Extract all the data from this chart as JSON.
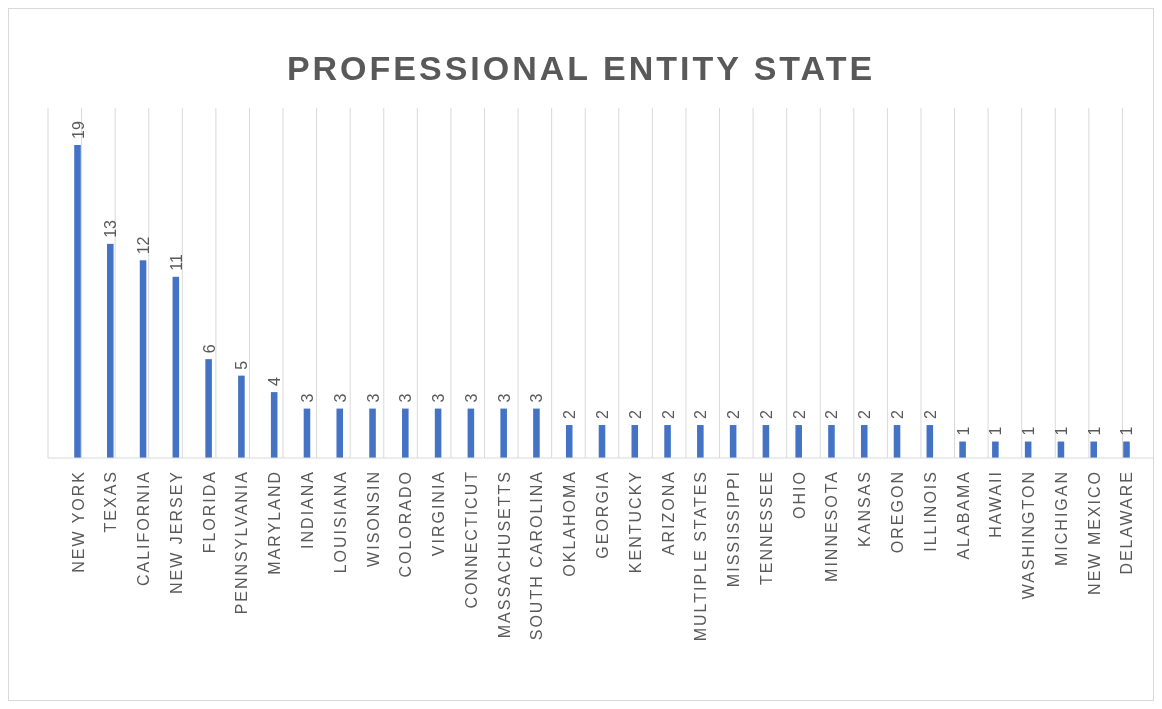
{
  "chart_data": {
    "type": "bar",
    "title": "PROFESSIONAL ENTITY STATE",
    "categories": [
      "NEW YORK",
      "TEXAS",
      "CALIFORNIA",
      "NEW JERSEY",
      "FLORIDA",
      "PENNSYLVANIA",
      "MARYLAND",
      "INDIANA",
      "LOUISIANA",
      "WISONSIN",
      "COLORADO",
      "VIRGINIA",
      "CONNECTICUT",
      "MASSACHUSETTS",
      "SOUTH CAROLINA",
      "OKLAHOMA",
      "GEORGIA",
      "KENTUCKY",
      "ARIZONA",
      "MULTIPLE STATES",
      "MISSISSIPPI",
      "TENNESSEE",
      "OHIO",
      "MINNESOTA",
      "KANSAS",
      "OREGON",
      "ILLINOIS",
      "ALABAMA",
      "HAWAII",
      "WASHINGTON",
      "MICHIGAN",
      "NEW MEXICO",
      "DELAWARE"
    ],
    "values": [
      19,
      13,
      12,
      11,
      6,
      5,
      4,
      3,
      3,
      3,
      3,
      3,
      3,
      3,
      3,
      2,
      2,
      2,
      2,
      2,
      2,
      2,
      2,
      2,
      2,
      2,
      2,
      1,
      1,
      1,
      1,
      1,
      1
    ],
    "color": "#4472c4",
    "data_labels": true,
    "grid": "x"
  }
}
